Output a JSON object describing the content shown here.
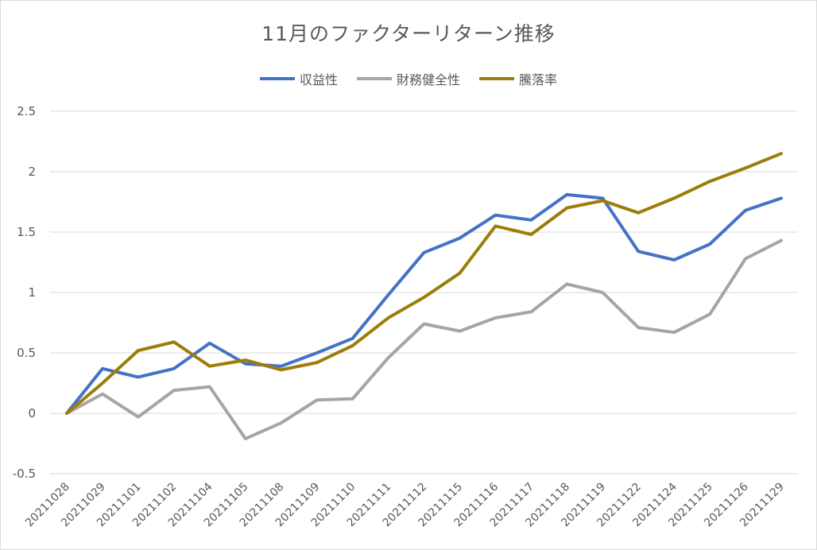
{
  "chart_data": {
    "type": "line",
    "title": "11月のファクターリターン推移",
    "xlabel": "",
    "ylabel": "",
    "ylim": [
      -0.5,
      2.5
    ],
    "yticks": [
      2.5,
      2,
      1.5,
      1,
      0.5,
      0,
      -0.5
    ],
    "ytick_labels": [
      "2.5",
      "2",
      "1.5",
      "1",
      "0.5",
      "0",
      "-0.5"
    ],
    "grid": true,
    "legend_position": "top",
    "categories": [
      "20211028",
      "20211029",
      "20211101",
      "20211102",
      "20211104",
      "20211105",
      "20211108",
      "20211109",
      "20211110",
      "20211111",
      "20211112",
      "20211115",
      "20211116",
      "20211117",
      "20211118",
      "20211119",
      "20211122",
      "20211124",
      "20211125",
      "20211126",
      "20211129"
    ],
    "series": [
      {
        "name": "収益性",
        "color": "#4472c4",
        "values": [
          0,
          0.37,
          0.3,
          0.37,
          0.58,
          0.41,
          0.39,
          0.5,
          0.62,
          0.98,
          1.33,
          1.45,
          1.64,
          1.6,
          1.81,
          1.78,
          1.34,
          1.27,
          1.4,
          1.68,
          1.78
        ]
      },
      {
        "name": "財務健全性",
        "color": "#a5a5a5",
        "values": [
          0,
          0.16,
          -0.03,
          0.19,
          0.22,
          -0.21,
          -0.08,
          0.11,
          0.12,
          0.46,
          0.74,
          0.68,
          0.79,
          0.84,
          1.07,
          1.0,
          0.71,
          0.67,
          0.82,
          1.28,
          1.43
        ]
      },
      {
        "name": "騰落率",
        "color": "#9c7d0a",
        "values": [
          0,
          0.25,
          0.52,
          0.59,
          0.39,
          0.44,
          0.36,
          0.42,
          0.56,
          0.79,
          0.96,
          1.16,
          1.55,
          1.48,
          1.7,
          1.76,
          1.66,
          1.78,
          1.92,
          2.03,
          2.15
        ]
      }
    ]
  }
}
